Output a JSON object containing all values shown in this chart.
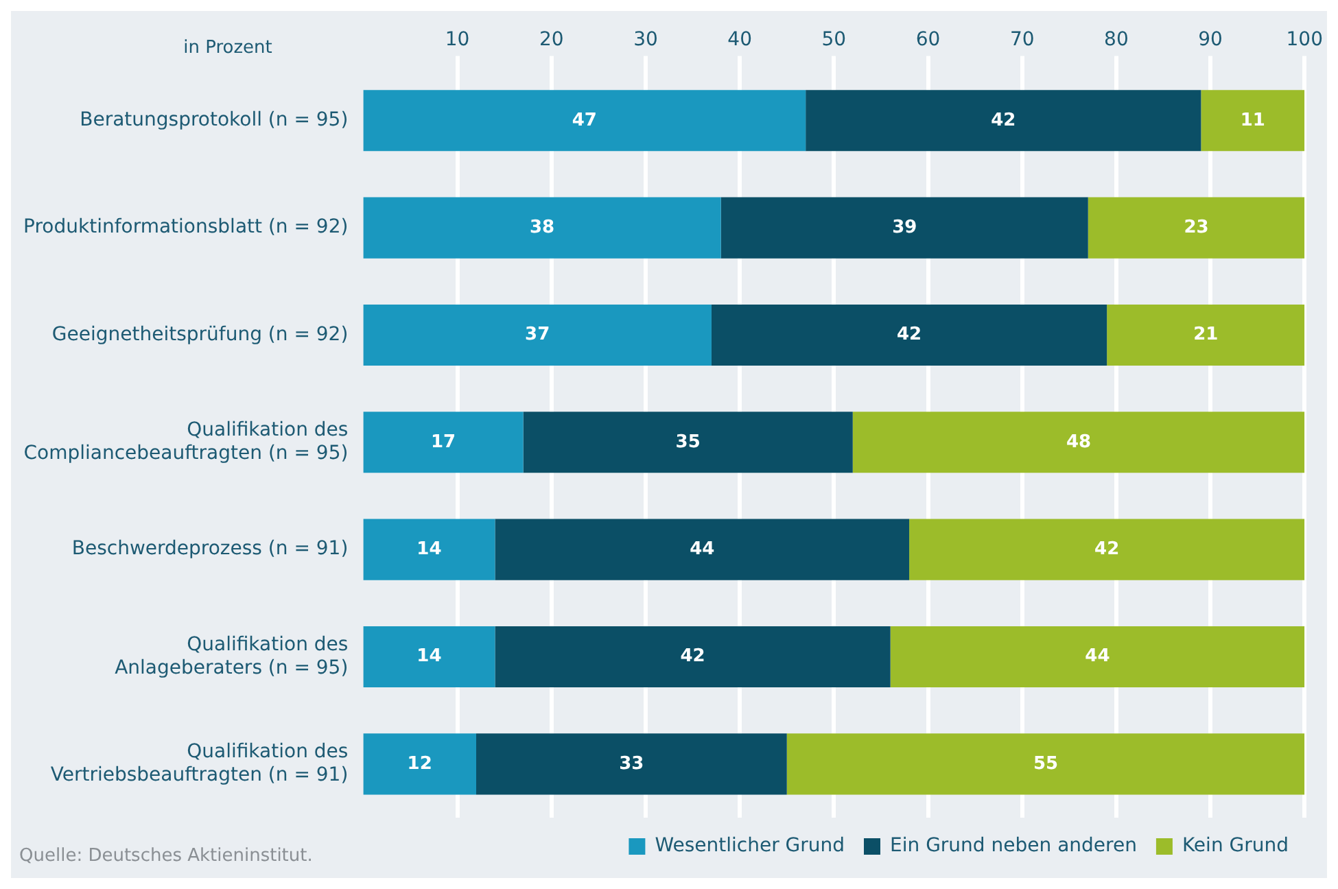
{
  "chart_data": {
    "type": "bar",
    "orientation": "horizontal",
    "stacked": true,
    "categories": [
      "Beratungsprotokoll (n = 95)",
      "Produktinformationsblatt (n = 92)",
      "Geeignetheitsprüfung (n = 92)",
      "Qualifikation des\nCompliancebeauftragten (n = 95)",
      "Beschwerdeprozess (n = 91)",
      "Qualifikation des\nAnlageberaters (n = 95)",
      "Qualifikation des\nVertriebsbeauftragten (n = 91)"
    ],
    "series": [
      {
        "name": "Wesentlicher Grund",
        "color": "#1a98bf",
        "values": [
          47,
          38,
          37,
          17,
          14,
          14,
          12
        ]
      },
      {
        "name": "Ein Grund neben anderen",
        "color": "#0b4f66",
        "values": [
          42,
          39,
          42,
          35,
          44,
          42,
          33
        ]
      },
      {
        "name": "Kein Grund",
        "color": "#9cbc2a",
        "values": [
          11,
          23,
          21,
          48,
          42,
          44,
          55
        ]
      }
    ],
    "xlim": [
      0,
      100
    ],
    "xticks": [
      10,
      20,
      30,
      40,
      50,
      60,
      70,
      80,
      90,
      100
    ],
    "grid": "x",
    "legend": "bottom",
    "data_labels": true,
    "annotations": [
      "in Prozent",
      "Quelle: Deutsches Aktieninstitut."
    ]
  }
}
